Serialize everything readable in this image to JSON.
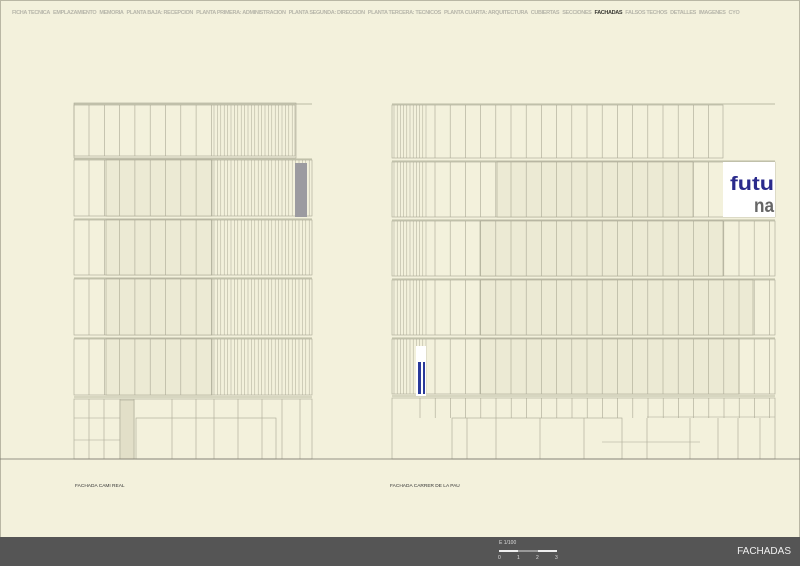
{
  "nav": {
    "items": [
      {
        "label": "FICHA TECNICA",
        "active": false
      },
      {
        "label": "EMPLAZAMIENTO",
        "active": false
      },
      {
        "label": "MEMORIA",
        "active": false
      },
      {
        "label": "PLANTA BAJA: RECEPCION",
        "active": false
      },
      {
        "label": "PLANTA PRIMERA: ADMINISTRACION",
        "active": false
      },
      {
        "label": "PLANTA SEGUNDA: DIRECCION",
        "active": false
      },
      {
        "label": "PLANTA TERCERA: TECNICOS",
        "active": false
      },
      {
        "label": "PLANTA CUARTA: ARQUITECTURA",
        "active": false
      },
      {
        "label": "CUBIERTAS",
        "active": false
      },
      {
        "label": "SECCIONES",
        "active": false
      },
      {
        "label": "FACHADAS",
        "active": true
      },
      {
        "label": "FALSOS TECHOS",
        "active": false
      },
      {
        "label": "DETALLES",
        "active": false
      },
      {
        "label": "IMAGENES",
        "active": false
      },
      {
        "label": "CYO",
        "active": false
      }
    ]
  },
  "drawings": {
    "left_caption": "FACHADA CAMI REAL",
    "right_caption": "FACHADA CARRER DE LA PAU",
    "logo": {
      "line1": "futu",
      "line2": "na"
    }
  },
  "footer": {
    "scale_label": "E 1/100",
    "scale_ticks": [
      "0",
      "1",
      "2",
      "3"
    ],
    "title": "FACHADAS"
  },
  "colors": {
    "background": "#f3f1dc",
    "footer": "#555555",
    "logo_blue": "#2a2a8c",
    "logo_gray": "#666666",
    "line": "#a9a793"
  }
}
